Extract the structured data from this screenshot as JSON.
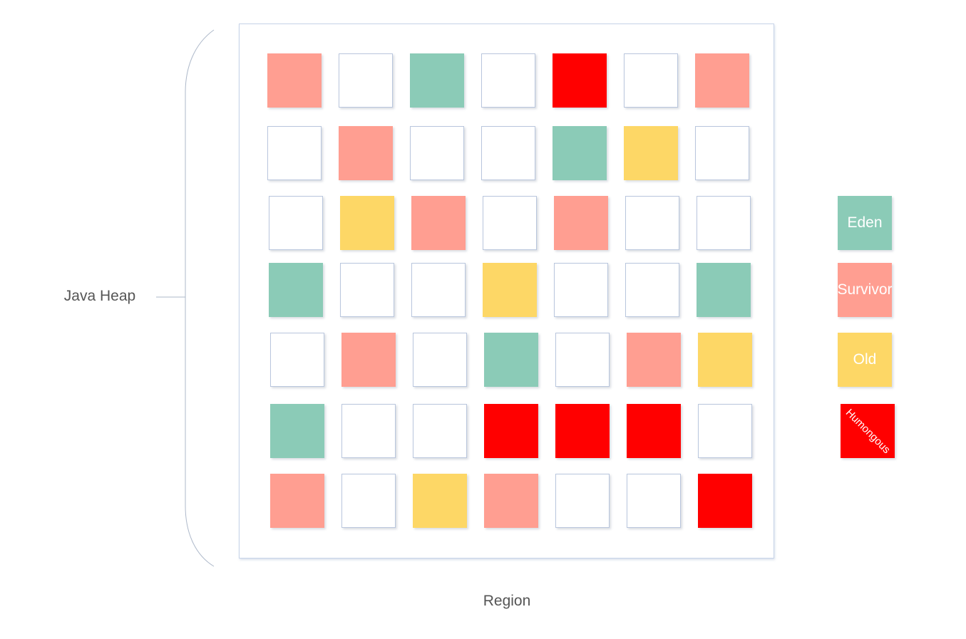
{
  "labels": {
    "heap": "Java Heap",
    "region": "Region"
  },
  "colors": {
    "eden": "#8bcbb7",
    "survivor": "#ff9e91",
    "old": "#fdd766",
    "humongous": "#ff0000",
    "empty": "#ffffff"
  },
  "grid": [
    [
      "survivor",
      "empty",
      "eden",
      "empty",
      "humongous",
      "empty",
      "survivor"
    ],
    [
      "empty",
      "survivor",
      "empty",
      "empty",
      "eden",
      "old",
      "empty"
    ],
    [
      "empty",
      "old",
      "survivor",
      "empty",
      "survivor",
      "empty",
      "empty"
    ],
    [
      "eden",
      "empty",
      "empty",
      "old",
      "empty",
      "empty",
      "eden"
    ],
    [
      "empty",
      "survivor",
      "empty",
      "eden",
      "empty",
      "survivor",
      "old"
    ],
    [
      "eden",
      "empty",
      "empty",
      "humongous",
      "humongous",
      "humongous",
      "empty"
    ],
    [
      "survivor",
      "empty",
      "old",
      "survivor",
      "empty",
      "empty",
      "humongous"
    ]
  ],
  "legend": [
    {
      "key": "eden",
      "label": "Eden"
    },
    {
      "key": "survivor",
      "label": "Survivor"
    },
    {
      "key": "old",
      "label": "Old"
    },
    {
      "key": "humongous",
      "label": "Humongous"
    }
  ]
}
